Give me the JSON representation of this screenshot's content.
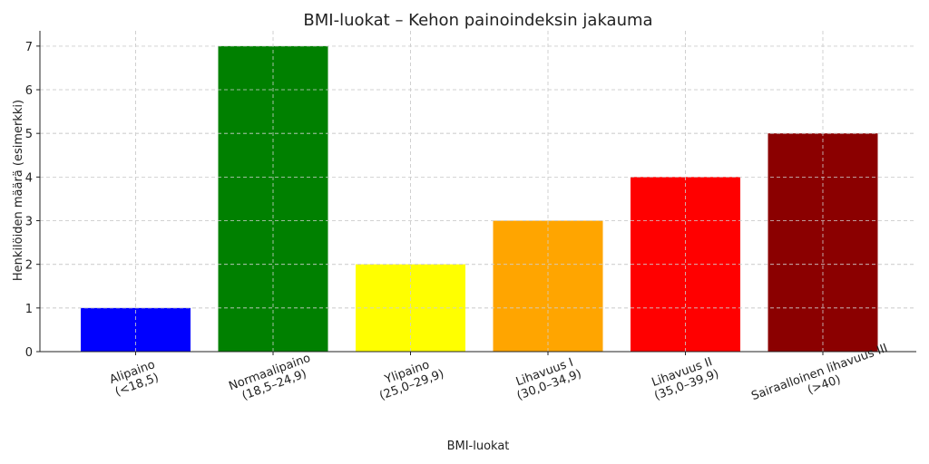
{
  "chart_data": {
    "type": "bar",
    "title": "BMI-luokat – Kehon painoindeksin jakauma",
    "xlabel": "BMI-luokat",
    "ylabel": "Henkilöiden määrä (esimerkki)",
    "ylim": [
      0,
      7.35
    ],
    "yticks": [
      0,
      1,
      2,
      3,
      4,
      5,
      6,
      7
    ],
    "grid": true,
    "categories": [
      [
        "Alipaino",
        "(<18,5)"
      ],
      [
        "Normaalipaino",
        "(18,5–24,9)"
      ],
      [
        "Ylipaino",
        "(25,0–29,9)"
      ],
      [
        "Lihavuus I",
        "(30,0–34,9)"
      ],
      [
        "Lihavuus II",
        "(35,0–39,9)"
      ],
      [
        "Sairaalloinen lihavuus III",
        "(>40)"
      ]
    ],
    "values": [
      1,
      7,
      2,
      3,
      4,
      5
    ],
    "colors": [
      "#0000ff",
      "#008000",
      "#ffff00",
      "#ffa500",
      "#ff0000",
      "#8b0000"
    ]
  }
}
